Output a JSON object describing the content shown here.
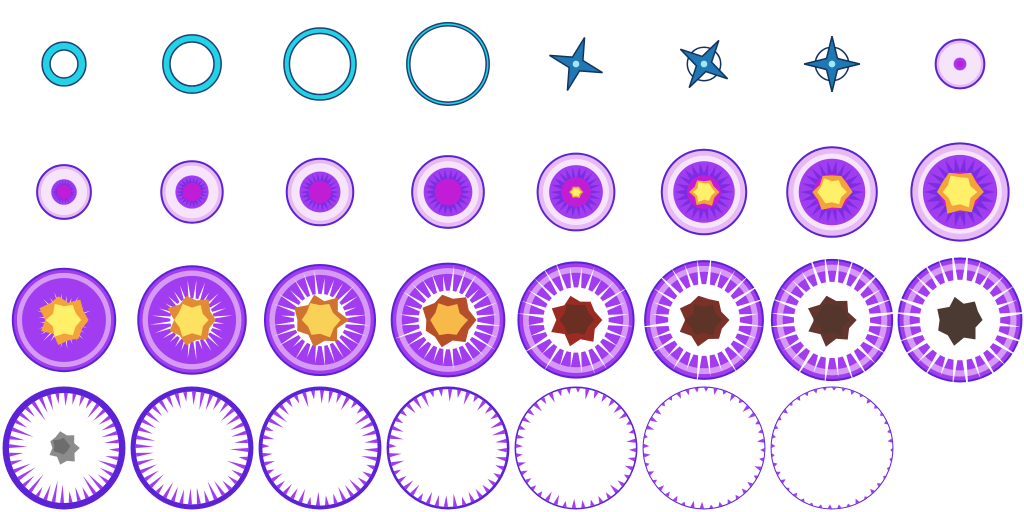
{
  "sheet": {
    "columns": 8,
    "rows": 4,
    "frame_count": 31
  },
  "colors": {
    "background": "#ffffff",
    "ring_cyan": "#22d3e6",
    "ring_navy": "#1f3f78",
    "star_blue": "#1f78b4",
    "star_navy": "#13325e",
    "purple_light": "#e7b9f5",
    "purple_mid": "#a13cf0",
    "purple_deep": "#5b22d6",
    "magenta_core": "#c21dd6",
    "flash_yellow": "#fff06a",
    "flash_orange": "#f3a33a",
    "ember_red": "#9b2a22",
    "ember_brown": "#6b2e22",
    "smoke_dark": "#4a3a32",
    "smoke_grey": "#8c8c8c"
  },
  "frames": [
    {
      "kind": "ring",
      "ring": 0.14,
      "thick": 0.36
    },
    {
      "kind": "ring",
      "ring": 0.2,
      "thick": 0.22
    },
    {
      "kind": "ring",
      "ring": 0.26,
      "thick": 0.12
    },
    {
      "kind": "ring",
      "ring": 0.31,
      "thick": 0.04
    },
    {
      "kind": "star",
      "star": 0.15,
      "rot": 18,
      "cross": 0
    },
    {
      "kind": "star",
      "star": 0.15,
      "rot": 32,
      "cross": 1
    },
    {
      "kind": "star",
      "star": 0.15,
      "rot": 0,
      "cross": 2
    },
    {
      "kind": "orb",
      "orb": 0.19,
      "core": 0.05,
      "flash": 0,
      "spike": 0,
      "band": 0
    },
    {
      "kind": "orb",
      "orb": 0.21,
      "core": 0.1,
      "flash": 0,
      "spike": 0,
      "band": 0
    },
    {
      "kind": "orb",
      "orb": 0.24,
      "core": 0.13,
      "flash": 0,
      "spike": 0,
      "band": 0
    },
    {
      "kind": "orb",
      "orb": 0.26,
      "core": 0.16,
      "flash": 0,
      "spike": 0,
      "band": 0
    },
    {
      "kind": "orb",
      "orb": 0.28,
      "core": 0.19,
      "flash": 0,
      "spike": 0,
      "band": 0
    },
    {
      "kind": "orb",
      "orb": 0.3,
      "core": 0.21,
      "flash": 0.05,
      "spike": 0,
      "band": 0
    },
    {
      "kind": "orb",
      "orb": 0.33,
      "core": 0.24,
      "flash": 0.11,
      "spike": 0,
      "band": 0
    },
    {
      "kind": "orb",
      "orb": 0.35,
      "core": 0.26,
      "flash": 0.15,
      "spike": 0,
      "band": 0
    },
    {
      "kind": "orb",
      "orb": 0.38,
      "core": 0.29,
      "flash": 0.18,
      "spike": 0,
      "band": 0
    },
    {
      "kind": "burst",
      "orb": 0.4,
      "hollow": 0.14,
      "flash": 0.19,
      "tint": 0
    },
    {
      "kind": "burst",
      "orb": 0.42,
      "hollow": 0.2,
      "flash": 0.19,
      "tint": 0.1
    },
    {
      "kind": "burst",
      "orb": 0.43,
      "hollow": 0.24,
      "flash": 0.2,
      "tint": 0.2
    },
    {
      "kind": "burst",
      "orb": 0.44,
      "hollow": 0.27,
      "flash": 0.2,
      "tint": 0.35
    },
    {
      "kind": "burst",
      "orb": 0.45,
      "hollow": 0.3,
      "flash": 0.19,
      "tint": 0.5
    },
    {
      "kind": "burst",
      "orb": 0.46,
      "hollow": 0.33,
      "flash": 0.19,
      "tint": 0.7
    },
    {
      "kind": "burst",
      "orb": 0.47,
      "hollow": 0.35,
      "flash": 0.19,
      "tint": 0.85
    },
    {
      "kind": "burst",
      "orb": 0.48,
      "hollow": 0.37,
      "flash": 0.18,
      "tint": 1
    },
    {
      "kind": "shell",
      "orb": 0.48,
      "smoke": 1,
      "teeth": 0.15,
      "band": 0.05
    },
    {
      "kind": "shell",
      "orb": 0.48,
      "smoke": 0,
      "teeth": 0.13,
      "band": 0.04
    },
    {
      "kind": "shell",
      "orb": 0.48,
      "smoke": 0,
      "teeth": 0.11,
      "band": 0.03
    },
    {
      "kind": "shell",
      "orb": 0.48,
      "smoke": 0,
      "teeth": 0.09,
      "band": 0.02
    },
    {
      "kind": "shell",
      "orb": 0.48,
      "smoke": 0,
      "teeth": 0.07,
      "band": 0.012
    },
    {
      "kind": "shell",
      "orb": 0.48,
      "smoke": 0,
      "teeth": 0.05,
      "band": 0.008
    },
    {
      "kind": "shell",
      "orb": 0.48,
      "smoke": 0,
      "teeth": 0.03,
      "band": 0.005
    }
  ]
}
